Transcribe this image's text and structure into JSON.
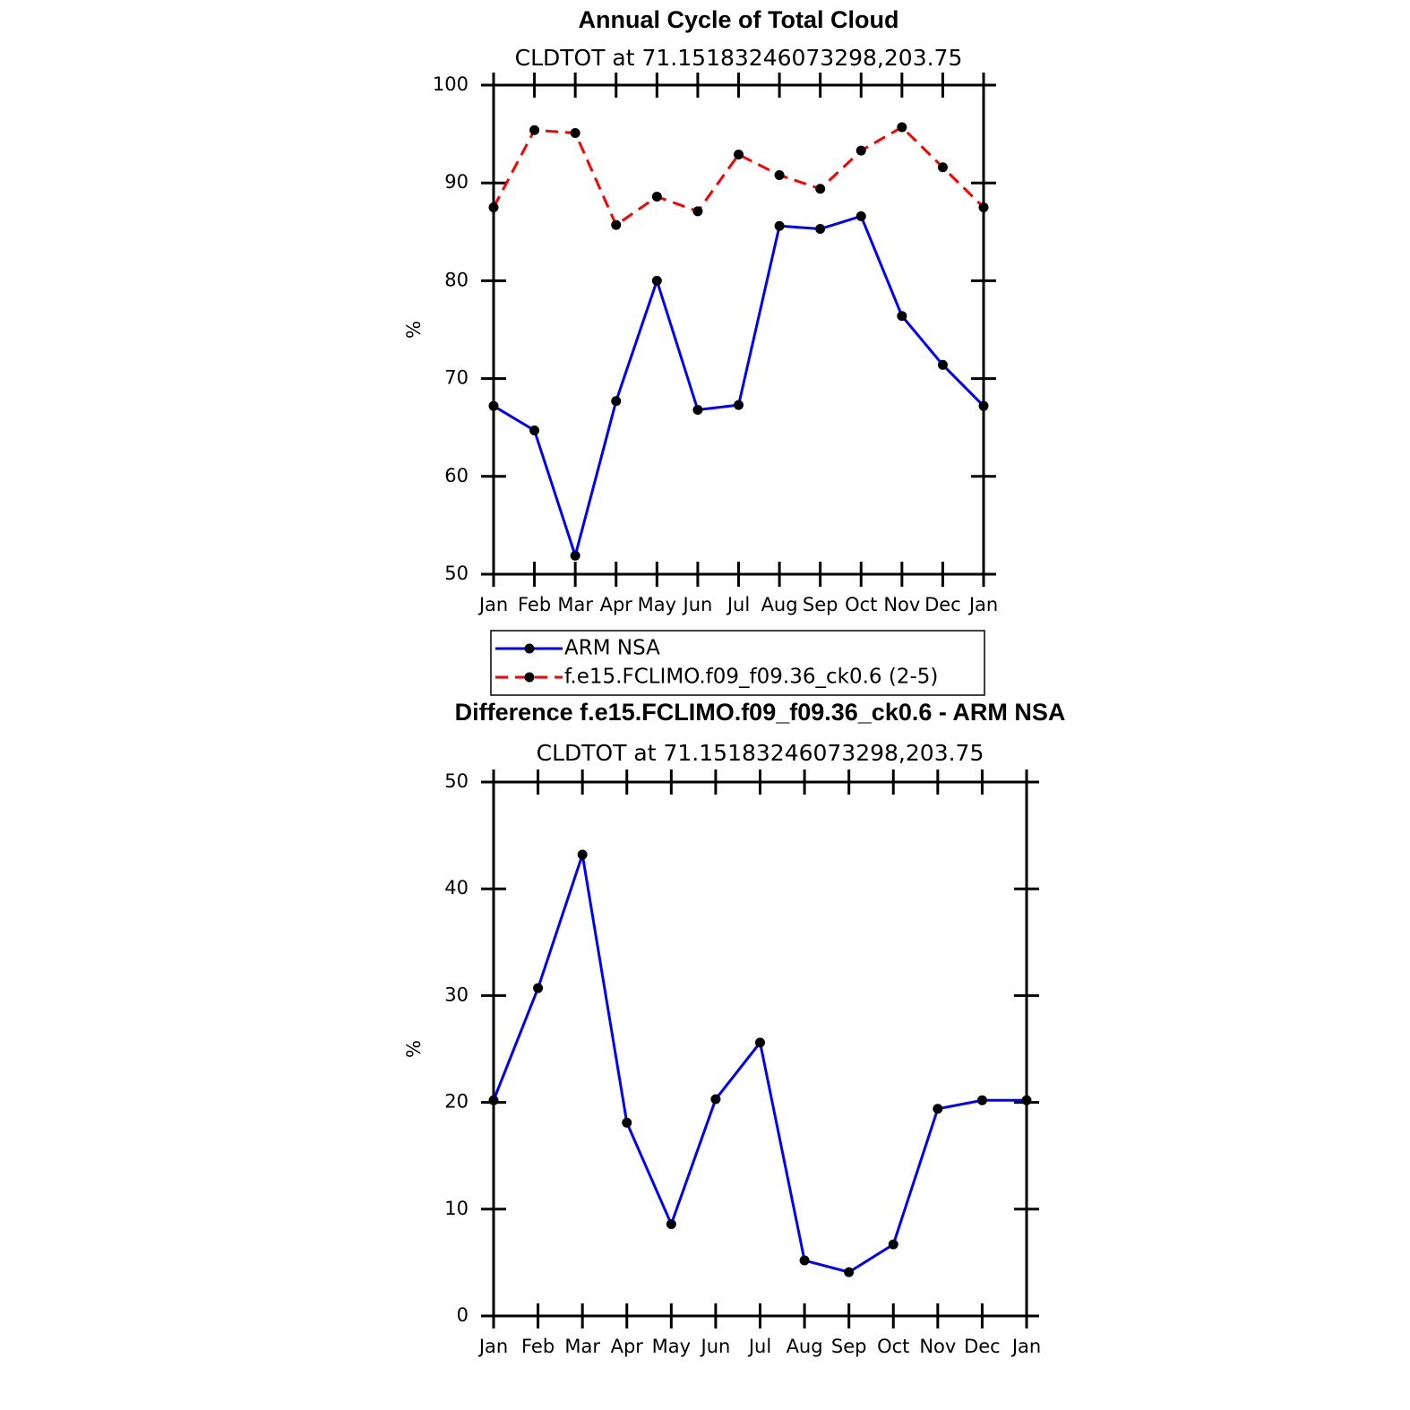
{
  "chart_data": [
    {
      "type": "line",
      "title": "Annual Cycle of Total Cloud",
      "subtitle": "CLDTOT at 71.15183246073298,203.75",
      "y_label": "%",
      "categories": [
        "Jan",
        "Feb",
        "Mar",
        "Apr",
        "May",
        "Jun",
        "Jul",
        "Aug",
        "Sep",
        "Oct",
        "Nov",
        "Dec",
        "Jan"
      ],
      "series": [
        {
          "name": "ARM NSA",
          "color": "#0000ff",
          "line_style": "solid",
          "values": [
            67.2,
            64.7,
            51.9,
            67.7,
            80.0,
            66.8,
            67.3,
            85.6,
            85.3,
            86.6,
            76.4,
            71.4,
            67.2
          ]
        },
        {
          "name": "f.e15.FCLIMO.f09_f09.36_ck0.6 (2-5)",
          "color": "#ff0000",
          "line_style": "dashed",
          "values": [
            87.5,
            95.4,
            95.1,
            85.7,
            88.6,
            87.1,
            92.9,
            90.8,
            89.4,
            93.3,
            95.7,
            91.6,
            87.5
          ]
        }
      ],
      "ylim": [
        50,
        100
      ],
      "yticks": [
        50,
        60,
        70,
        80,
        90,
        100
      ],
      "legend": "bottom"
    },
    {
      "type": "line",
      "title": "Difference f.e15.FCLIMO.f09_f09.36_ck0.6 - ARM NSA",
      "subtitle": "CLDTOT at 71.15183246073298,203.75",
      "y_label": "%",
      "categories": [
        "Jan",
        "Feb",
        "Mar",
        "Apr",
        "May",
        "Jun",
        "Jul",
        "Aug",
        "Sep",
        "Oct",
        "Nov",
        "Dec",
        "Jan"
      ],
      "color": "#0000ff",
      "values": [
        20.2,
        30.7,
        43.2,
        18.1,
        8.6,
        20.3,
        25.6,
        5.2,
        4.1,
        6.7,
        19.4,
        20.2,
        20.2
      ],
      "ylim": [
        0,
        50
      ],
      "yticks": [
        0,
        10,
        20,
        30,
        40,
        50
      ]
    }
  ]
}
